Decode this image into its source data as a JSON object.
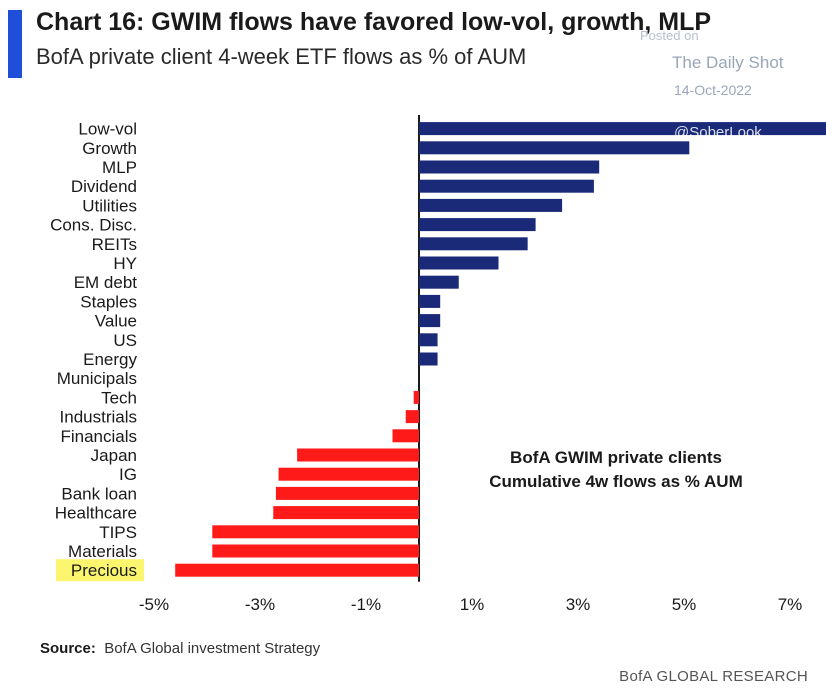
{
  "header": {
    "title": "Chart 16: GWIM flows have favored low-vol, growth, MLP",
    "subtitle": "BofA private client 4-week ETF flows as % of AUM"
  },
  "watermark": {
    "posted": "Posted on",
    "site": "The Daily Shot",
    "date": "14-Oct-2022",
    "handle": "@SoberLook"
  },
  "annotation": {
    "line1": "BofA GWIM private clients",
    "line2": "Cumulative 4w flows as % AUM"
  },
  "source": {
    "label": "Source:",
    "text": "BofA Global investment Strategy"
  },
  "footer": {
    "brand": "BofA GLOBAL RESEARCH"
  },
  "colors": {
    "positive": "#1a2a78",
    "negative": "#ff1a1a",
    "highlight": "#fbf66e",
    "accent": "#1f4fd8"
  },
  "chart_data": {
    "type": "bar",
    "orientation": "horizontal",
    "categories": [
      "Low-vol",
      "Growth",
      "MLP",
      "Dividend",
      "Utilities",
      "Cons. Disc.",
      "REITs",
      "HY",
      "EM debt",
      "Staples",
      "Value",
      "US",
      "Energy",
      "Municipals",
      "Tech",
      "Industrials",
      "Financials",
      "Japan",
      "IG",
      "Bank loan",
      "Healthcare",
      "TIPS",
      "Materials",
      "Precious"
    ],
    "values": [
      7.7,
      5.1,
      3.4,
      3.3,
      2.7,
      2.2,
      2.05,
      1.5,
      0.75,
      0.4,
      0.4,
      0.35,
      0.35,
      0.0,
      -0.1,
      -0.25,
      -0.5,
      -2.3,
      -2.65,
      -2.7,
      -2.75,
      -3.9,
      -3.9,
      -4.6
    ],
    "highlighted_category": "Precious",
    "x_ticks": [
      "-5%",
      "-3%",
      "-1%",
      "1%",
      "3%",
      "5%",
      "7%"
    ],
    "x_tick_values": [
      -5,
      -3,
      -1,
      1,
      3,
      5,
      7
    ],
    "xlim": [
      -5.4,
      7.7
    ],
    "grid": false,
    "legend": "none"
  }
}
